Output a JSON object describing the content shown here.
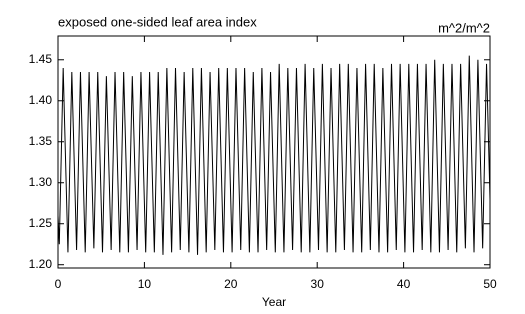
{
  "chart_data": {
    "type": "line",
    "title": "exposed one-sided leaf area index",
    "units": "m^2/m^2",
    "xlabel": "Year",
    "x": [
      0,
      0.15,
      0.6,
      1.15,
      1.6,
      2.15,
      2.6,
      3.15,
      3.6,
      4.15,
      4.6,
      5.15,
      5.6,
      6.15,
      6.6,
      7.15,
      7.6,
      8.15,
      8.6,
      9.15,
      9.6,
      10.15,
      10.6,
      11.15,
      11.6,
      12.15,
      12.6,
      13.15,
      13.6,
      14.15,
      14.6,
      15.15,
      15.6,
      16.15,
      16.6,
      17.15,
      17.6,
      18.15,
      18.6,
      19.15,
      19.6,
      20.15,
      20.6,
      21.15,
      21.6,
      22.15,
      22.6,
      23.15,
      23.6,
      24.15,
      24.6,
      25.15,
      25.6,
      26.15,
      26.6,
      27.15,
      27.6,
      28.15,
      28.6,
      29.15,
      29.6,
      30.15,
      30.6,
      31.15,
      31.6,
      32.15,
      32.6,
      33.15,
      33.6,
      34.15,
      34.6,
      35.15,
      35.6,
      36.15,
      36.6,
      37.15,
      37.6,
      38.15,
      38.6,
      39.15,
      39.6,
      40.15,
      40.6,
      41.15,
      41.6,
      42.15,
      42.6,
      43.15,
      43.6,
      44.15,
      44.6,
      45.15,
      45.6,
      46.15,
      46.6,
      47.15,
      47.6,
      48.15,
      48.6,
      49.15,
      49.6,
      50
    ],
    "series": [
      {
        "color": "#000000",
        "values": [
          1.26,
          1.225,
          1.44,
          1.215,
          1.435,
          1.218,
          1.435,
          1.215,
          1.435,
          1.22,
          1.435,
          1.215,
          1.43,
          1.218,
          1.435,
          1.215,
          1.435,
          1.215,
          1.43,
          1.218,
          1.435,
          1.215,
          1.435,
          1.215,
          1.435,
          1.212,
          1.44,
          1.215,
          1.44,
          1.218,
          1.435,
          1.215,
          1.44,
          1.212,
          1.44,
          1.215,
          1.435,
          1.218,
          1.44,
          1.215,
          1.44,
          1.215,
          1.44,
          1.218,
          1.44,
          1.215,
          1.435,
          1.215,
          1.44,
          1.218,
          1.435,
          1.215,
          1.445,
          1.215,
          1.44,
          1.218,
          1.44,
          1.215,
          1.445,
          1.215,
          1.44,
          1.218,
          1.445,
          1.215,
          1.44,
          1.215,
          1.445,
          1.218,
          1.445,
          1.215,
          1.44,
          1.215,
          1.445,
          1.218,
          1.445,
          1.215,
          1.44,
          1.215,
          1.445,
          1.218,
          1.445,
          1.215,
          1.445,
          1.215,
          1.445,
          1.218,
          1.445,
          1.215,
          1.45,
          1.215,
          1.445,
          1.218,
          1.445,
          1.215,
          1.445,
          1.22,
          1.455,
          1.215,
          1.45,
          1.22,
          1.445,
          1.28
        ]
      }
    ],
    "xlim": [
      0,
      50
    ],
    "xticks": [
      0,
      10,
      20,
      30,
      40,
      50
    ],
    "ylim": [
      1.196,
      1.479
    ],
    "yticks": [
      {
        "value": 1.2,
        "label": "1.20"
      },
      1.25,
      {
        "value": 1.3,
        "label": "1.30"
      },
      1.35,
      {
        "value": 1.4,
        "label": "1.40"
      },
      1.45
    ]
  }
}
